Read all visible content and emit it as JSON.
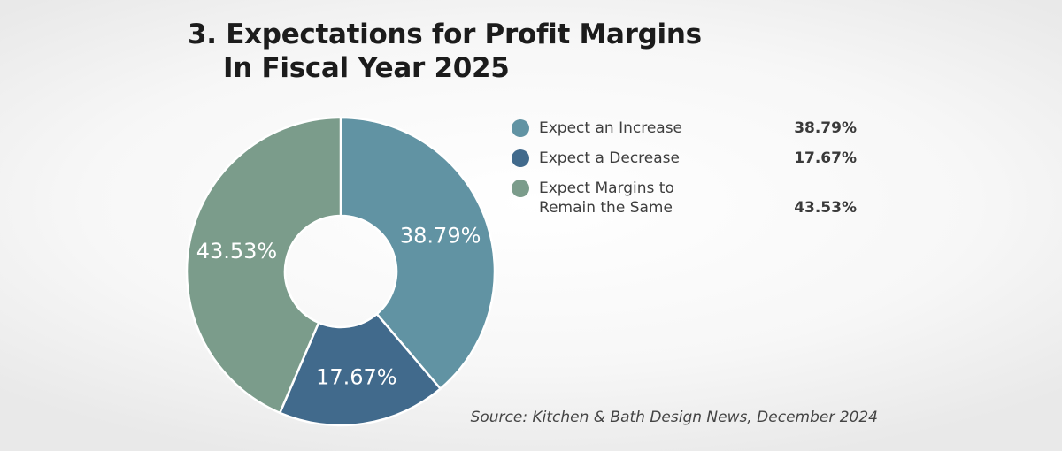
{
  "title": {
    "line1": "3. Expectations for Profit Margins",
    "line2": "In Fiscal Year 2025"
  },
  "source": "Source: Kitchen & Bath Design News, December 2024",
  "chart_data": {
    "type": "pie",
    "variant": "donut",
    "title": "3. Expectations for Profit Margins In Fiscal Year 2025",
    "categories": [
      "Expect an Increase",
      "Expect a Decrease",
      "Expect Margins to Remain the Same"
    ],
    "values": [
      38.79,
      17.67,
      43.53
    ],
    "value_labels": [
      "38.79%",
      "17.67%",
      "43.53%"
    ],
    "colors": [
      "#6193a3",
      "#416a8c",
      "#7b9c8b"
    ],
    "legend_position": "right",
    "start_angle": "12 o'clock, clockwise"
  },
  "legend": {
    "items": [
      {
        "label": "Expect an Increase",
        "value": "38.79%",
        "color": "#6193a3"
      },
      {
        "label": "Expect a Decrease",
        "value": "17.67%",
        "color": "#416a8c"
      },
      {
        "label": "Expect Margins to\nRemain the Same",
        "value": "43.53%",
        "color": "#7b9c8b"
      }
    ]
  }
}
